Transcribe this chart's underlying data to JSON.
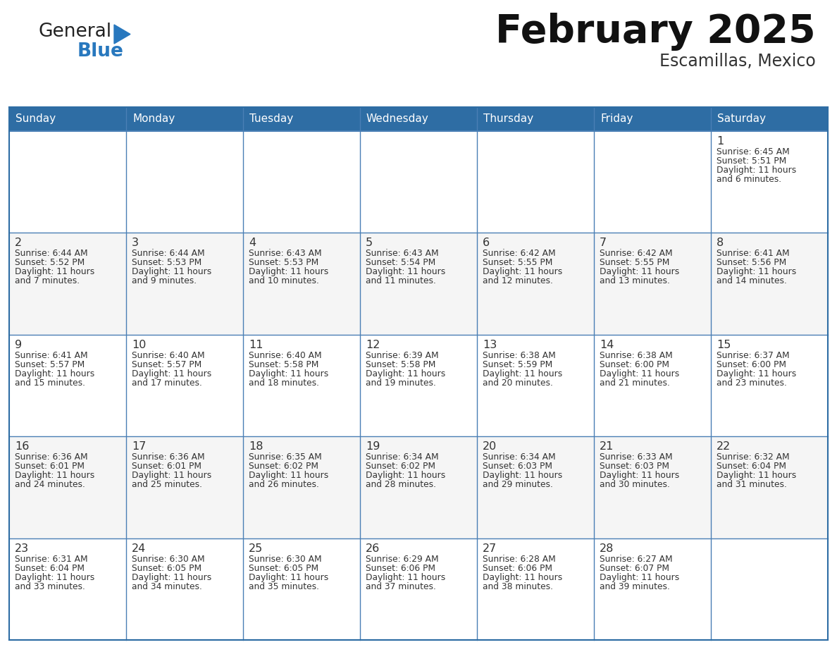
{
  "title": "February 2025",
  "subtitle": "Escamillas, Mexico",
  "header_bg": "#2E6DA4",
  "header_text": "#FFFFFF",
  "cell_bg": "#FFFFFF",
  "cell_bg_alt": "#F5F5F5",
  "border_color": "#2E6DA4",
  "row_line_color": "#4A7FB5",
  "day_headers": [
    "Sunday",
    "Monday",
    "Tuesday",
    "Wednesday",
    "Thursday",
    "Friday",
    "Saturday"
  ],
  "title_color": "#111111",
  "subtitle_color": "#333333",
  "day_num_color": "#333333",
  "cell_text_color": "#333333",
  "logo_text1_color": "#222222",
  "logo_text2_color": "#2878BE",
  "logo_triangle_color": "#2878BE",
  "calendar_data": [
    [
      null,
      null,
      null,
      null,
      null,
      null,
      {
        "day": 1,
        "sunrise": "6:45 AM",
        "sunset": "5:51 PM",
        "daylight": "11 hours and 6 minutes."
      }
    ],
    [
      {
        "day": 2,
        "sunrise": "6:44 AM",
        "sunset": "5:52 PM",
        "daylight": "11 hours and 7 minutes."
      },
      {
        "day": 3,
        "sunrise": "6:44 AM",
        "sunset": "5:53 PM",
        "daylight": "11 hours and 9 minutes."
      },
      {
        "day": 4,
        "sunrise": "6:43 AM",
        "sunset": "5:53 PM",
        "daylight": "11 hours and 10 minutes."
      },
      {
        "day": 5,
        "sunrise": "6:43 AM",
        "sunset": "5:54 PM",
        "daylight": "11 hours and 11 minutes."
      },
      {
        "day": 6,
        "sunrise": "6:42 AM",
        "sunset": "5:55 PM",
        "daylight": "11 hours and 12 minutes."
      },
      {
        "day": 7,
        "sunrise": "6:42 AM",
        "sunset": "5:55 PM",
        "daylight": "11 hours and 13 minutes."
      },
      {
        "day": 8,
        "sunrise": "6:41 AM",
        "sunset": "5:56 PM",
        "daylight": "11 hours and 14 minutes."
      }
    ],
    [
      {
        "day": 9,
        "sunrise": "6:41 AM",
        "sunset": "5:57 PM",
        "daylight": "11 hours and 15 minutes."
      },
      {
        "day": 10,
        "sunrise": "6:40 AM",
        "sunset": "5:57 PM",
        "daylight": "11 hours and 17 minutes."
      },
      {
        "day": 11,
        "sunrise": "6:40 AM",
        "sunset": "5:58 PM",
        "daylight": "11 hours and 18 minutes."
      },
      {
        "day": 12,
        "sunrise": "6:39 AM",
        "sunset": "5:58 PM",
        "daylight": "11 hours and 19 minutes."
      },
      {
        "day": 13,
        "sunrise": "6:38 AM",
        "sunset": "5:59 PM",
        "daylight": "11 hours and 20 minutes."
      },
      {
        "day": 14,
        "sunrise": "6:38 AM",
        "sunset": "6:00 PM",
        "daylight": "11 hours and 21 minutes."
      },
      {
        "day": 15,
        "sunrise": "6:37 AM",
        "sunset": "6:00 PM",
        "daylight": "11 hours and 23 minutes."
      }
    ],
    [
      {
        "day": 16,
        "sunrise": "6:36 AM",
        "sunset": "6:01 PM",
        "daylight": "11 hours and 24 minutes."
      },
      {
        "day": 17,
        "sunrise": "6:36 AM",
        "sunset": "6:01 PM",
        "daylight": "11 hours and 25 minutes."
      },
      {
        "day": 18,
        "sunrise": "6:35 AM",
        "sunset": "6:02 PM",
        "daylight": "11 hours and 26 minutes."
      },
      {
        "day": 19,
        "sunrise": "6:34 AM",
        "sunset": "6:02 PM",
        "daylight": "11 hours and 28 minutes."
      },
      {
        "day": 20,
        "sunrise": "6:34 AM",
        "sunset": "6:03 PM",
        "daylight": "11 hours and 29 minutes."
      },
      {
        "day": 21,
        "sunrise": "6:33 AM",
        "sunset": "6:03 PM",
        "daylight": "11 hours and 30 minutes."
      },
      {
        "day": 22,
        "sunrise": "6:32 AM",
        "sunset": "6:04 PM",
        "daylight": "11 hours and 31 minutes."
      }
    ],
    [
      {
        "day": 23,
        "sunrise": "6:31 AM",
        "sunset": "6:04 PM",
        "daylight": "11 hours and 33 minutes."
      },
      {
        "day": 24,
        "sunrise": "6:30 AM",
        "sunset": "6:05 PM",
        "daylight": "11 hours and 34 minutes."
      },
      {
        "day": 25,
        "sunrise": "6:30 AM",
        "sunset": "6:05 PM",
        "daylight": "11 hours and 35 minutes."
      },
      {
        "day": 26,
        "sunrise": "6:29 AM",
        "sunset": "6:06 PM",
        "daylight": "11 hours and 37 minutes."
      },
      {
        "day": 27,
        "sunrise": "6:28 AM",
        "sunset": "6:06 PM",
        "daylight": "11 hours and 38 minutes."
      },
      {
        "day": 28,
        "sunrise": "6:27 AM",
        "sunset": "6:07 PM",
        "daylight": "11 hours and 39 minutes."
      },
      null
    ]
  ]
}
